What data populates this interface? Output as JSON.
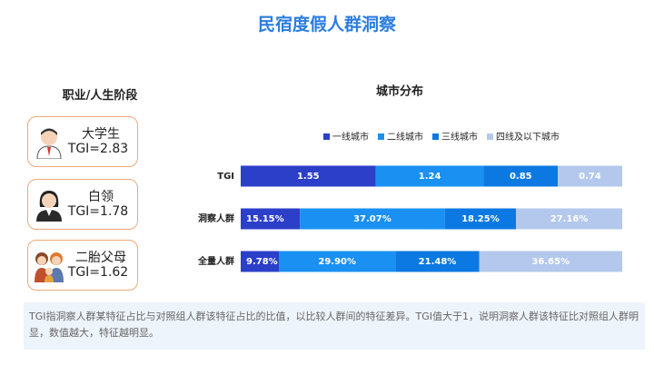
{
  "header": {
    "title": "民宿度假人群洞察"
  },
  "left": {
    "title": "职业/人生阶段",
    "cards": [
      {
        "label": "大学生",
        "tgi": "TGI=2.83"
      },
      {
        "label": "白领",
        "tgi": "TGI=1.78"
      },
      {
        "label": "二胎父母",
        "tgi": "TGI=1.62"
      }
    ]
  },
  "chart_data": {
    "type": "stacked_bar_horizontal",
    "title": "城市分布",
    "categories": [
      "TGI",
      "洞察人群",
      "全量人群"
    ],
    "series": [
      {
        "name": "一线城市",
        "color": "#2b3fc9",
        "values": [
          1.55,
          15.15,
          9.78
        ],
        "value_labels": [
          "1.55",
          "15.15%",
          "9.78%"
        ]
      },
      {
        "name": "二线城市",
        "color": "#1a90f2",
        "values": [
          1.24,
          37.07,
          29.9
        ],
        "value_labels": [
          "1.24",
          "37.07%",
          "29.90%"
        ]
      },
      {
        "name": "三线城市",
        "color": "#0c78e2",
        "values": [
          0.85,
          18.25,
          21.48
        ],
        "value_labels": [
          "0.85",
          "18.25%",
          "21.48%"
        ]
      },
      {
        "name": "四线及以下城市",
        "color": "#b3c8ec",
        "values": [
          0.74,
          27.16,
          36.65
        ],
        "value_labels": [
          "0.74",
          "27.16%",
          "36.65%"
        ]
      }
    ]
  },
  "footnote": "TGI指洞察人群某特征占比与对照组人群该特征占比的比值，以比较人群间的特征差异。TGI值大于1，说明洞察人群该特征比对照组人群明显，数值越大，特征越明显。"
}
